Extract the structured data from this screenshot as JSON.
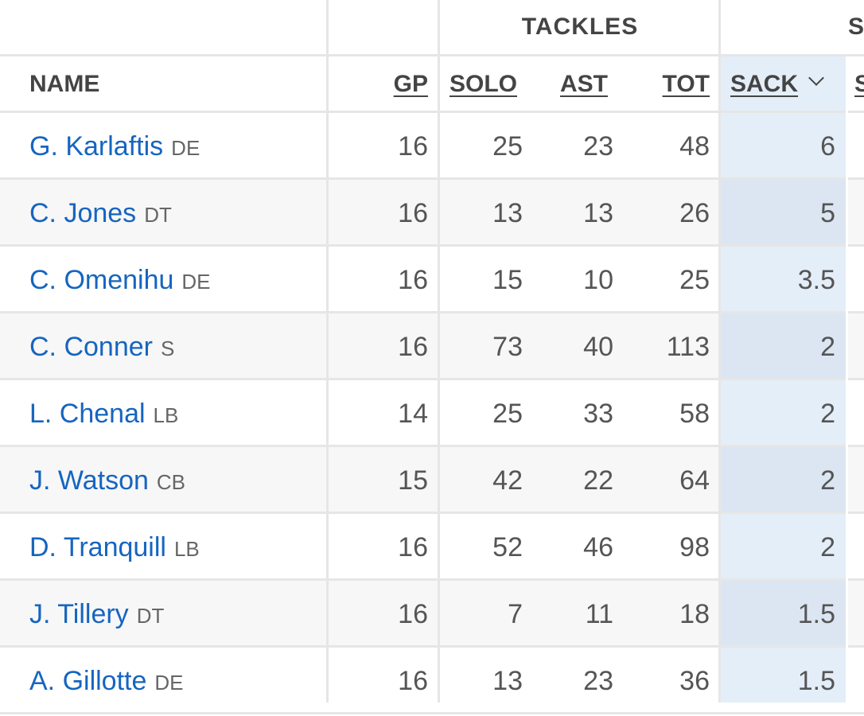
{
  "table": {
    "group_header": "TACKLES",
    "next_group_header_partial": "S",
    "columns": {
      "name": "NAME",
      "gp": "GP",
      "solo": "SOLO",
      "ast": "AST",
      "tot": "TOT",
      "sack": "SACK",
      "next_partial": "S"
    },
    "sorted_column": "SACK",
    "rows": [
      {
        "name": "G. Karlaftis",
        "pos": "DE",
        "gp": "16",
        "solo": "25",
        "ast": "23",
        "tot": "48",
        "sack": "6"
      },
      {
        "name": "C. Jones",
        "pos": "DT",
        "gp": "16",
        "solo": "13",
        "ast": "13",
        "tot": "26",
        "sack": "5"
      },
      {
        "name": "C. Omenihu",
        "pos": "DE",
        "gp": "16",
        "solo": "15",
        "ast": "10",
        "tot": "25",
        "sack": "3.5"
      },
      {
        "name": "C. Conner",
        "pos": "S",
        "gp": "16",
        "solo": "73",
        "ast": "40",
        "tot": "113",
        "sack": "2"
      },
      {
        "name": "L. Chenal",
        "pos": "LB",
        "gp": "14",
        "solo": "25",
        "ast": "33",
        "tot": "58",
        "sack": "2"
      },
      {
        "name": "J. Watson",
        "pos": "CB",
        "gp": "15",
        "solo": "42",
        "ast": "22",
        "tot": "64",
        "sack": "2"
      },
      {
        "name": "D. Tranquill",
        "pos": "LB",
        "gp": "16",
        "solo": "52",
        "ast": "46",
        "tot": "98",
        "sack": "2"
      },
      {
        "name": "J. Tillery",
        "pos": "DT",
        "gp": "16",
        "solo": "7",
        "ast": "11",
        "tot": "18",
        "sack": "1.5"
      },
      {
        "name": "A. Gillotte",
        "pos": "DE",
        "gp": "16",
        "solo": "13",
        "ast": "23",
        "tot": "36",
        "sack": "1.5"
      }
    ]
  },
  "colors": {
    "link": "#1565c0",
    "sorted_column_bg": "#e4eef9",
    "stripe_bg": "#f7f7f7",
    "grid": "#e6e6e6"
  },
  "icons": {
    "sort": "chevron-down-icon"
  }
}
